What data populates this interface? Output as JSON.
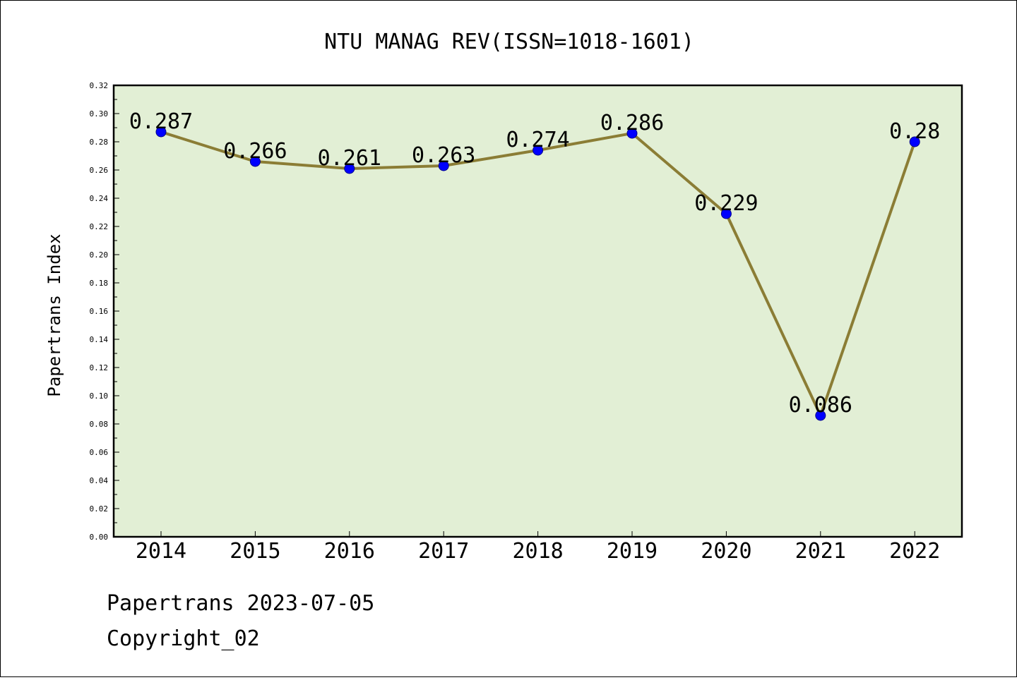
{
  "chart_data": {
    "type": "line",
    "title": "NTU MANAG REV(ISSN=1018-1601)",
    "xlabel": "",
    "ylabel": "Papertrans Index",
    "categories": [
      "2014",
      "2015",
      "2016",
      "2017",
      "2018",
      "2019",
      "2020",
      "2021",
      "2022"
    ],
    "series": [
      {
        "values": [
          0.287,
          0.266,
          0.261,
          0.263,
          0.274,
          0.286,
          0.229,
          0.086,
          0.28
        ],
        "data_labels": [
          "0.287",
          "0.266",
          "0.261",
          "0.263",
          "0.274",
          "0.286",
          "0.229",
          "0.086",
          "0.28"
        ],
        "line_color": "#8b7d35",
        "marker_color": "#0000ff"
      }
    ],
    "ylim": [
      0,
      0.32
    ],
    "yticks": [
      "0.00",
      "0.02",
      "0.04",
      "0.06",
      "0.08",
      "0.10",
      "0.12",
      "0.14",
      "0.16",
      "0.18",
      "0.20",
      "0.22",
      "0.24",
      "0.26",
      "0.28",
      "0.30",
      "0.32"
    ],
    "plot_background": "#e2efd5",
    "grid": false,
    "legend": "none"
  },
  "footer": {
    "line1": "Papertrans 2023-07-05",
    "line2": "Copyright_02"
  }
}
